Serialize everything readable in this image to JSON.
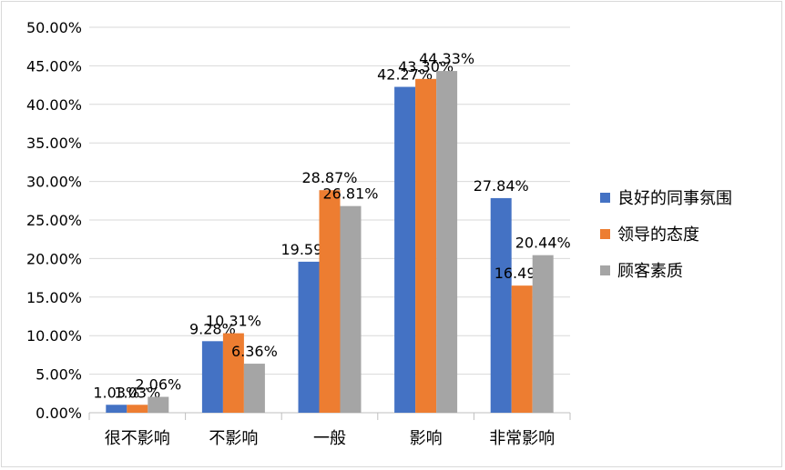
{
  "chart_data": {
    "type": "bar",
    "categories": [
      "很不影响",
      "不影响",
      "一般",
      "影响",
      "非常影响"
    ],
    "series": [
      {
        "name": "良好的同事氛围",
        "color": "#4472c4",
        "values": [
          1.03,
          9.28,
          19.59,
          42.27,
          27.84
        ],
        "labels": [
          "1.03%",
          "9.28%",
          "19.59%",
          "42.27%",
          "27.84%"
        ]
      },
      {
        "name": "领导的态度",
        "color": "#ed7d31",
        "values": [
          1.03,
          10.31,
          28.87,
          43.3,
          16.49
        ],
        "labels": [
          "1.03%",
          "10.31%",
          "28.87%",
          "43.30%",
          "16.49%"
        ]
      },
      {
        "name": "顾客素质",
        "color": "#a5a5a5",
        "values": [
          2.06,
          6.36,
          26.81,
          44.33,
          20.44
        ],
        "labels": [
          "2.06%",
          "6.36%",
          "26.81%",
          "44.33%",
          "20.44%"
        ]
      }
    ],
    "yticks": [
      "0.00%",
      "5.00%",
      "10.00%",
      "15.00%",
      "20.00%",
      "25.00%",
      "30.00%",
      "35.00%",
      "40.00%",
      "45.00%",
      "50.00%"
    ],
    "ylim": [
      0,
      50
    ],
    "grid": true,
    "legend": "right"
  }
}
